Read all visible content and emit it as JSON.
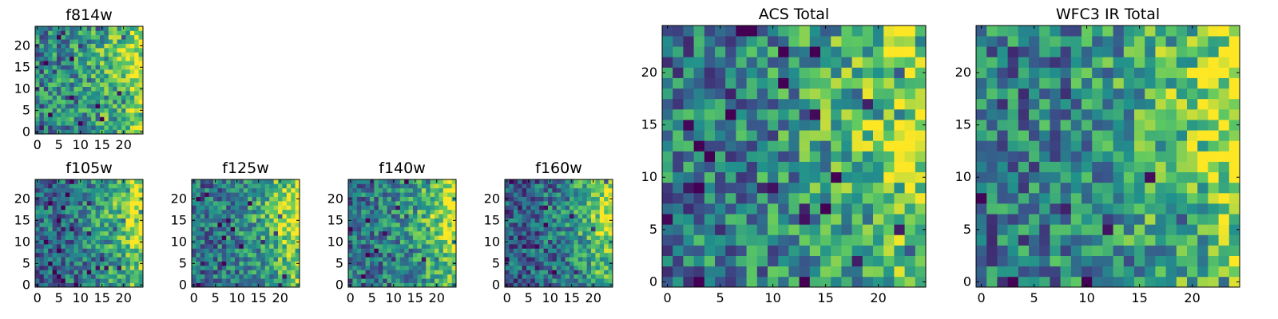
{
  "figure": {
    "colormap": "viridis",
    "colors": [
      "#440154",
      "#3b528b",
      "#21918c",
      "#5ec962",
      "#fde725"
    ],
    "frame_color": "#000000"
  },
  "chart_data": [
    {
      "id": "f814w",
      "type": "heatmap",
      "title": "f814w",
      "size": 25,
      "seed": 11,
      "cell": 1,
      "xticks": [
        0,
        5,
        10,
        15,
        20
      ],
      "yticks": [
        0,
        5,
        10,
        15,
        20
      ],
      "xlim": [
        -0.5,
        24.5
      ],
      "ylim": [
        -0.5,
        24.5
      ],
      "pattern": "bright-right",
      "base": 0.45,
      "gradient": 0.55,
      "noise": 0.3
    },
    {
      "id": "f105w",
      "type": "heatmap",
      "title": "f105w",
      "size": 25,
      "seed": 23,
      "cell": 2,
      "xticks": [
        0,
        5,
        10,
        15,
        20
      ],
      "yticks": [
        0,
        5,
        10,
        15,
        20
      ],
      "xlim": [
        -0.5,
        24.5
      ],
      "ylim": [
        -0.5,
        24.5
      ],
      "pattern": "bright-right",
      "base": 0.35,
      "gradient": 0.65,
      "noise": 0.26
    },
    {
      "id": "f125w",
      "type": "heatmap",
      "title": "f125w",
      "size": 25,
      "seed": 37,
      "cell": 2,
      "xticks": [
        0,
        5,
        10,
        15,
        20
      ],
      "yticks": [
        0,
        5,
        10,
        15,
        20
      ],
      "xlim": [
        -0.5,
        24.5
      ],
      "ylim": [
        -0.5,
        24.5
      ],
      "pattern": "bright-right",
      "base": 0.38,
      "gradient": 0.62,
      "noise": 0.26
    },
    {
      "id": "f140w",
      "type": "heatmap",
      "title": "f140w",
      "size": 25,
      "seed": 41,
      "cell": 2,
      "xticks": [
        0,
        5,
        10,
        15,
        20
      ],
      "yticks": [
        0,
        5,
        10,
        15,
        20
      ],
      "xlim": [
        -0.5,
        24.5
      ],
      "ylim": [
        -0.5,
        24.5
      ],
      "pattern": "bright-right",
      "base": 0.38,
      "gradient": 0.62,
      "noise": 0.26
    },
    {
      "id": "f160w",
      "type": "heatmap",
      "title": "f160w",
      "size": 25,
      "seed": 53,
      "cell": 2,
      "xticks": [
        0,
        5,
        10,
        15,
        20
      ],
      "yticks": [
        0,
        5,
        10,
        15,
        20
      ],
      "xlim": [
        -0.5,
        24.5
      ],
      "ylim": [
        -0.5,
        24.5
      ],
      "pattern": "bright-right",
      "base": 0.3,
      "gradient": 0.7,
      "noise": 0.26
    },
    {
      "id": "acs-total",
      "type": "heatmap",
      "title": "ACS Total",
      "size": 25,
      "seed": 67,
      "cell": 1,
      "xticks": [
        0,
        5,
        10,
        15,
        20
      ],
      "yticks": [
        0,
        5,
        10,
        15,
        20
      ],
      "xlim": [
        -0.5,
        24.5
      ],
      "ylim": [
        -0.5,
        24.5
      ],
      "pattern": "bright-right",
      "base": 0.42,
      "gradient": 0.55,
      "noise": 0.3
    },
    {
      "id": "wfc3-ir-total",
      "type": "heatmap",
      "title": "WFC3 IR Total",
      "size": 25,
      "seed": 79,
      "cell": 1,
      "xticks": [
        0,
        5,
        10,
        15,
        20
      ],
      "yticks": [
        0,
        5,
        10,
        15,
        20
      ],
      "xlim": [
        -0.5,
        24.5
      ],
      "ylim": [
        -0.5,
        24.5
      ],
      "pattern": "bright-right",
      "base": 0.42,
      "gradient": 0.55,
      "noise": 0.3
    }
  ]
}
